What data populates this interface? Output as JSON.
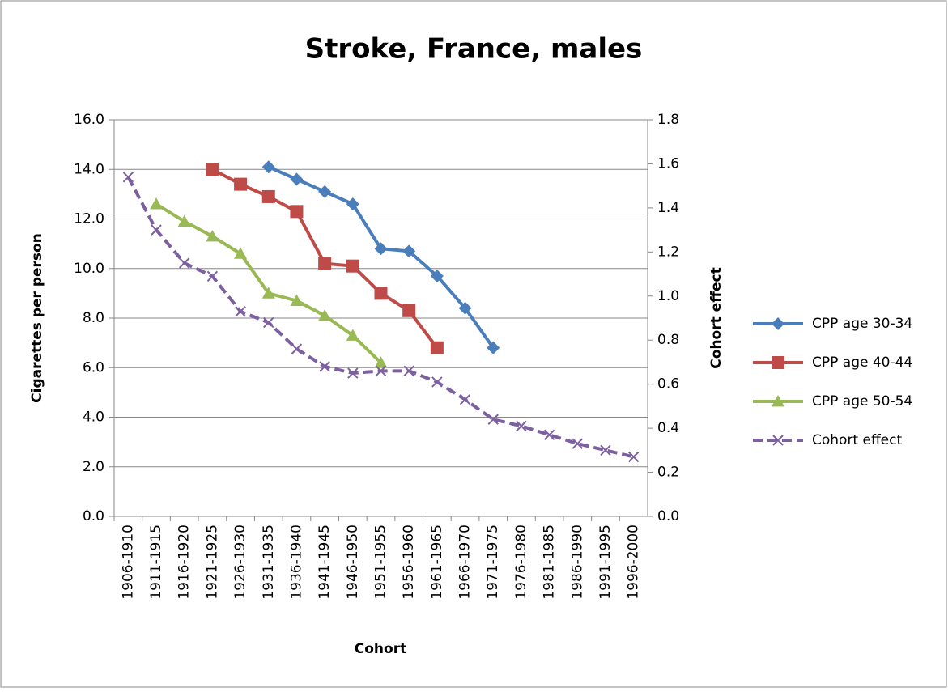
{
  "chart_data": {
    "type": "line",
    "title": "Stroke, France, males",
    "x_label": "Cohort",
    "y_label": "Cigarettes per person",
    "y2_label": "Cohort effect",
    "categories": [
      "1906-1910",
      "1911-1915",
      "1916-1920",
      "1921-1925",
      "1926-1930",
      "1931-1935",
      "1936-1940",
      "1941-1945",
      "1946-1950",
      "1951-1955",
      "1956-1960",
      "1961-1965",
      "1966-1970",
      "1971-1975",
      "1976-1980",
      "1981-1985",
      "1986-1990",
      "1991-1995",
      "1996-2000"
    ],
    "series": [
      {
        "name": "CPP age 30-34",
        "color": "#4a7ebb",
        "marker": "diamond",
        "values": [
          null,
          null,
          null,
          null,
          null,
          14.1,
          13.6,
          13.1,
          12.6,
          10.8,
          10.7,
          9.7,
          8.4,
          6.8,
          null,
          null,
          null,
          null,
          null
        ]
      },
      {
        "name": "CPP age 40-44",
        "color": "#be4b48",
        "marker": "square",
        "values": [
          null,
          null,
          null,
          14.0,
          13.4,
          12.9,
          12.3,
          10.2,
          10.1,
          9.0,
          8.3,
          6.8,
          null,
          null,
          null,
          null,
          null,
          null,
          null
        ]
      },
      {
        "name": "CPP age 50-54",
        "color": "#98b954",
        "marker": "triangle",
        "values": [
          null,
          12.6,
          11.9,
          11.3,
          10.6,
          9.0,
          8.7,
          8.1,
          7.3,
          6.2,
          null,
          null,
          null,
          null,
          null,
          null,
          null,
          null,
          null
        ]
      },
      {
        "name": "Cohort effect",
        "color": "#7d60a0",
        "marker": "x",
        "dashed": true,
        "axis": "y2",
        "values": [
          1.54,
          1.3,
          1.15,
          1.09,
          0.93,
          0.88,
          0.76,
          0.68,
          0.65,
          0.66,
          0.66,
          0.61,
          0.53,
          0.44,
          0.41,
          0.37,
          0.33,
          0.3,
          0.27
        ]
      }
    ],
    "ylim": [
      0,
      16
    ],
    "yticks": [
      {
        "value": 0,
        "label": "0.0"
      },
      {
        "value": 2,
        "label": "2.0"
      },
      {
        "value": 4,
        "label": "4.0"
      },
      {
        "value": 6,
        "label": "6.0"
      },
      {
        "value": 8,
        "label": "8.0"
      },
      {
        "value": 10,
        "label": "10.0"
      },
      {
        "value": 12,
        "label": "12.0"
      },
      {
        "value": 14,
        "label": "14.0"
      },
      {
        "value": 16,
        "label": "16.0"
      }
    ],
    "y2lim": [
      0,
      1.8
    ],
    "y2ticks": [
      {
        "value": 0,
        "label": "0.0"
      },
      0.2,
      0.4,
      0.6,
      0.8,
      {
        "value": 1,
        "label": "1.0"
      },
      1.2,
      1.4,
      1.6,
      1.8
    ],
    "grid": true,
    "legend": "right"
  }
}
